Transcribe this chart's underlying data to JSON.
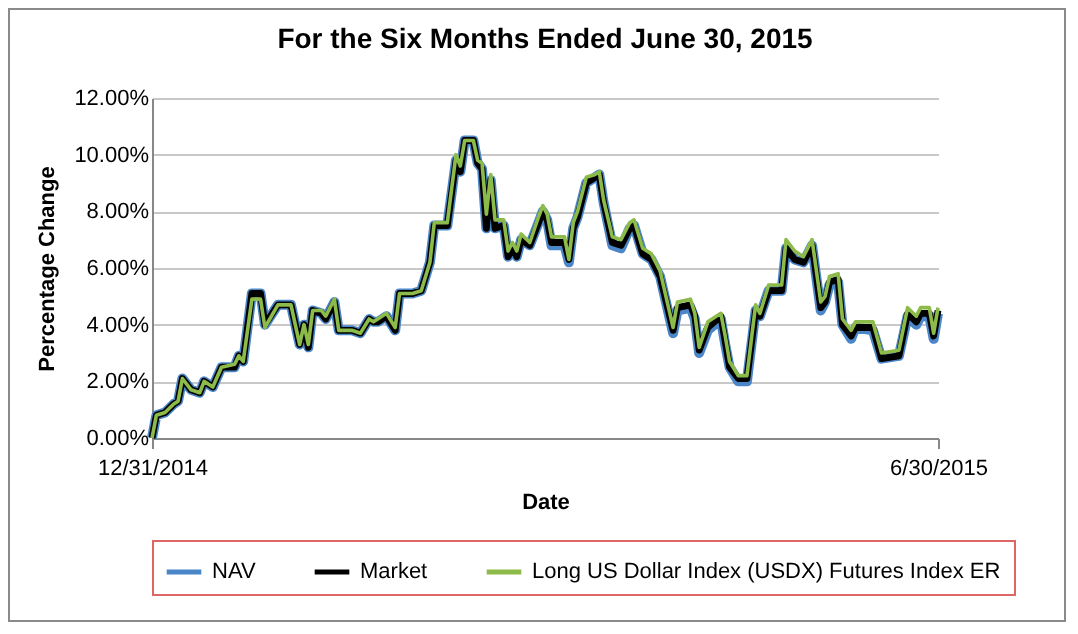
{
  "chart_data": {
    "type": "line",
    "title": "For the Six Months Ended June 30, 2015",
    "xlabel": "Date",
    "ylabel": "Percentage Change",
    "x": [
      "2014-12-31",
      "2015-01-01",
      "2015-01-03",
      "2015-01-05",
      "2015-01-06",
      "2015-01-07",
      "2015-01-09",
      "2015-01-11",
      "2015-01-12",
      "2015-01-14",
      "2015-01-16",
      "2015-01-19",
      "2015-01-20",
      "2015-01-21",
      "2015-01-23",
      "2015-01-25",
      "2015-01-26",
      "2015-01-29",
      "2015-02-01",
      "2015-02-03",
      "2015-02-04",
      "2015-02-05",
      "2015-02-06",
      "2015-02-08",
      "2015-02-09",
      "2015-02-11",
      "2015-02-12",
      "2015-02-15",
      "2015-02-17",
      "2015-02-19",
      "2015-02-20",
      "2015-02-21",
      "2015-02-23",
      "2015-02-25",
      "2015-02-26",
      "2015-03-01",
      "2015-03-03",
      "2015-03-05",
      "2015-03-06",
      "2015-03-09",
      "2015-03-11",
      "2015-03-12",
      "2015-03-13",
      "2015-03-15",
      "2015-03-16",
      "2015-03-17",
      "2015-03-18",
      "2015-03-19",
      "2015-03-20",
      "2015-03-22",
      "2015-03-23",
      "2015-03-24",
      "2015-03-25",
      "2015-03-26",
      "2015-03-28",
      "2015-03-30",
      "2015-03-31",
      "2015-04-01",
      "2015-04-02",
      "2015-04-05",
      "2015-04-06",
      "2015-04-07",
      "2015-04-08",
      "2015-04-10",
      "2015-04-12",
      "2015-04-13",
      "2015-04-14",
      "2015-04-16",
      "2015-04-18",
      "2015-04-20",
      "2015-04-21",
      "2015-04-23",
      "2015-04-25",
      "2015-04-27",
      "2015-04-30",
      "2015-05-01",
      "2015-05-04",
      "2015-05-05",
      "2015-05-06",
      "2015-05-08",
      "2015-05-11",
      "2015-05-12",
      "2015-05-13",
      "2015-05-15",
      "2015-05-17",
      "2015-05-19",
      "2015-05-20",
      "2015-05-22",
      "2015-05-25",
      "2015-05-26",
      "2015-05-28",
      "2015-05-30",
      "2015-06-01",
      "2015-06-03",
      "2015-06-04",
      "2015-06-05",
      "2015-06-07",
      "2015-06-08",
      "2015-06-10",
      "2015-06-11",
      "2015-06-15",
      "2015-06-17",
      "2015-06-21",
      "2015-06-23",
      "2015-06-25",
      "2015-06-26",
      "2015-06-28",
      "2015-06-29",
      "2015-06-30"
    ],
    "series": [
      {
        "name": "NAV",
        "color": "#4a86c8",
        "values": [
          0,
          0.8,
          0.9,
          1.2,
          1.3,
          2.1,
          1.7,
          1.6,
          2.0,
          1.8,
          2.5,
          2.5,
          2.9,
          2.7,
          5.1,
          5.1,
          4.0,
          4.7,
          4.7,
          3.3,
          4.0,
          3.2,
          4.5,
          4.4,
          4.2,
          4.8,
          3.8,
          3.8,
          3.7,
          4.2,
          4.1,
          4.1,
          4.3,
          3.8,
          5.1,
          5.1,
          5.2,
          6.2,
          7.5,
          7.5,
          9.8,
          9.4,
          10.5,
          10.5,
          9.7,
          9.5,
          7.4,
          9.1,
          7.4,
          7.5,
          6.4,
          6.7,
          6.4,
          7.0,
          6.8,
          7.6,
          8.0,
          7.7,
          6.8,
          6.8,
          6.2,
          7.4,
          7.8,
          9.0,
          9.2,
          9.3,
          8.3,
          6.8,
          6.7,
          7.4,
          7.5,
          6.5,
          6.3,
          5.7,
          3.7,
          4.5,
          4.6,
          4.2,
          3.0,
          3.8,
          4.2,
          3.3,
          2.5,
          2.0,
          2.0,
          4.5,
          4.3,
          5.2,
          5.2,
          6.7,
          6.3,
          6.2,
          6.8,
          4.5,
          4.8,
          5.4,
          5.5,
          4.0,
          3.5,
          3.9,
          3.8,
          2.8,
          2.9,
          4.3,
          4.0,
          4.3,
          4.3,
          3.5,
          4.4
        ]
      },
      {
        "name": "Market",
        "color": "#000000",
        "values": [
          0,
          0.8,
          0.9,
          1.2,
          1.3,
          2.1,
          1.7,
          1.6,
          2.0,
          1.8,
          2.5,
          2.5,
          2.9,
          2.7,
          5.1,
          5.1,
          4.0,
          4.7,
          4.7,
          3.3,
          4.0,
          3.2,
          4.5,
          4.4,
          4.2,
          4.8,
          3.8,
          3.8,
          3.7,
          4.2,
          4.1,
          4.1,
          4.3,
          3.8,
          5.1,
          5.1,
          5.2,
          6.2,
          7.5,
          7.5,
          9.8,
          9.4,
          10.5,
          10.5,
          9.7,
          9.5,
          7.4,
          9.1,
          7.4,
          7.5,
          6.4,
          6.7,
          6.4,
          7.0,
          6.8,
          7.6,
          8.0,
          7.7,
          6.9,
          6.9,
          6.3,
          7.4,
          7.8,
          9.0,
          9.2,
          9.3,
          8.3,
          6.9,
          6.8,
          7.4,
          7.5,
          6.5,
          6.3,
          5.7,
          3.8,
          4.6,
          4.7,
          4.3,
          3.1,
          3.9,
          4.3,
          3.4,
          2.5,
          2.1,
          2.1,
          4.5,
          4.3,
          5.2,
          5.2,
          6.7,
          6.3,
          6.2,
          6.8,
          4.6,
          4.8,
          5.5,
          5.6,
          4.0,
          3.6,
          3.9,
          3.9,
          2.8,
          2.9,
          4.4,
          4.1,
          4.4,
          4.4,
          3.6,
          4.5
        ]
      },
      {
        "name": "Long US Dollar Index (USDX) Futures Index ER",
        "color": "#8dbb4a",
        "values": [
          0,
          0.8,
          0.9,
          1.2,
          1.3,
          2.1,
          1.7,
          1.6,
          2.0,
          1.8,
          2.5,
          2.6,
          2.9,
          2.7,
          4.9,
          4.9,
          3.9,
          4.7,
          4.7,
          3.3,
          4.0,
          3.3,
          4.5,
          4.5,
          4.3,
          4.9,
          3.8,
          3.8,
          3.7,
          4.2,
          4.1,
          4.2,
          4.4,
          3.9,
          5.1,
          5.1,
          5.2,
          6.2,
          7.6,
          7.6,
          10.0,
          9.6,
          10.5,
          10.5,
          9.8,
          9.7,
          7.9,
          9.3,
          7.7,
          7.7,
          6.6,
          6.9,
          6.6,
          7.2,
          6.9,
          7.8,
          8.2,
          7.9,
          7.1,
          7.1,
          6.3,
          7.6,
          8.0,
          9.2,
          9.3,
          9.4,
          8.4,
          7.1,
          7.0,
          7.6,
          7.7,
          6.7,
          6.5,
          5.9,
          3.9,
          4.8,
          4.9,
          4.4,
          3.2,
          4.1,
          4.4,
          3.6,
          2.7,
          2.2,
          2.2,
          4.7,
          4.4,
          5.4,
          5.4,
          7.0,
          6.6,
          6.4,
          7.0,
          4.8,
          5.0,
          5.7,
          5.8,
          4.2,
          3.8,
          4.1,
          4.1,
          3.0,
          3.1,
          4.6,
          4.3,
          4.6,
          4.6,
          3.7,
          4.6
        ]
      }
    ],
    "xlim": [
      "2014-12-31",
      "2015-06-30"
    ],
    "xticks": [
      {
        "value": "2014-12-31",
        "label": "12/31/2014"
      },
      {
        "value": "2015-06-30",
        "label": "6/30/2015"
      }
    ],
    "ylim": [
      0,
      12
    ],
    "yticks": [
      {
        "value": 0,
        "label": "0.00%"
      },
      {
        "value": 2,
        "label": "2.00%"
      },
      {
        "value": 4,
        "label": "4.00%"
      },
      {
        "value": 6,
        "label": "6.00%"
      },
      {
        "value": 8,
        "label": "8.00%"
      },
      {
        "value": 10,
        "label": "10.00%"
      },
      {
        "value": 12,
        "label": "12.00%"
      }
    ],
    "grid": "y",
    "legend": "bottom"
  }
}
